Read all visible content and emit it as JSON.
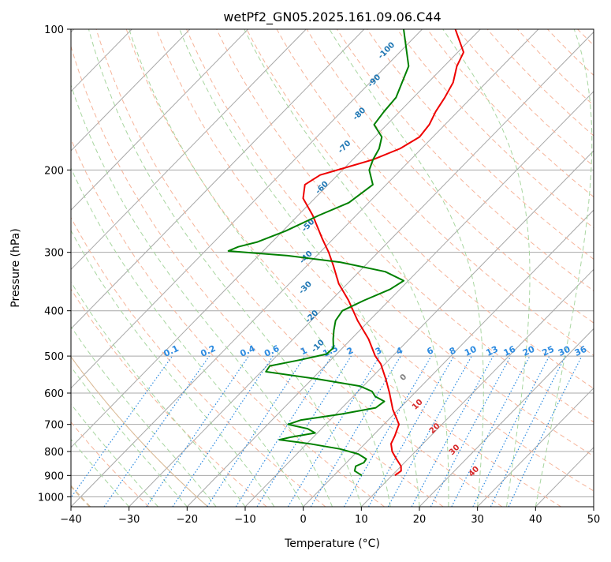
{
  "chart_data": {
    "type": "line",
    "subtype": "skew-T log-P diagram",
    "title": "wetPf2_GN05.2025.161.09.06.C44",
    "xlabel": "Temperature (°C)",
    "ylabel": "Pressure (hPa)",
    "xlim": [
      -40,
      50
    ],
    "ylim": [
      1050,
      100
    ],
    "yscale": "log",
    "x_ticks": [
      -40,
      -30,
      -20,
      -10,
      0,
      10,
      20,
      30,
      40,
      50
    ],
    "y_ticks": [
      100,
      200,
      300,
      400,
      500,
      600,
      700,
      800,
      900,
      1000
    ],
    "grid": true,
    "series": [
      {
        "role": "temperature",
        "color": "#ee0000",
        "points": [
          {
            "p": 900,
            "t": 10.5
          },
          {
            "p": 880,
            "t": 10.8
          },
          {
            "p": 860,
            "t": 10.0
          },
          {
            "p": 830,
            "t": 8.0
          },
          {
            "p": 800,
            "t": 6.0
          },
          {
            "p": 770,
            "t": 4.5
          },
          {
            "p": 740,
            "t": 3.8
          },
          {
            "p": 720,
            "t": 3.2
          },
          {
            "p": 700,
            "t": 2.6
          },
          {
            "p": 680,
            "t": 1.2
          },
          {
            "p": 650,
            "t": -1.0
          },
          {
            "p": 600,
            "t": -4.3
          },
          {
            "p": 560,
            "t": -7.3
          },
          {
            "p": 520,
            "t": -10.7
          },
          {
            "p": 500,
            "t": -13.0
          },
          {
            "p": 460,
            "t": -17.0
          },
          {
            "p": 420,
            "t": -22.0
          },
          {
            "p": 380,
            "t": -27.0
          },
          {
            "p": 350,
            "t": -31.5
          },
          {
            "p": 320,
            "t": -35.5
          },
          {
            "p": 300,
            "t": -38.5
          },
          {
            "p": 280,
            "t": -42.0
          },
          {
            "p": 250,
            "t": -47.5
          },
          {
            "p": 230,
            "t": -52.0
          },
          {
            "p": 215,
            "t": -54.0
          },
          {
            "p": 205,
            "t": -53.0
          },
          {
            "p": 198,
            "t": -50.0
          },
          {
            "p": 190,
            "t": -46.5
          },
          {
            "p": 180,
            "t": -43.7
          },
          {
            "p": 170,
            "t": -42.3
          },
          {
            "p": 160,
            "t": -42.7
          },
          {
            "p": 150,
            "t": -43.8
          },
          {
            "p": 140,
            "t": -44.6
          },
          {
            "p": 130,
            "t": -45.7
          },
          {
            "p": 120,
            "t": -47.8
          },
          {
            "p": 112,
            "t": -49.0
          },
          {
            "p": 100,
            "t": -54.3
          }
        ]
      },
      {
        "role": "dewpoint",
        "color": "#008000",
        "points": [
          {
            "p": 900,
            "t": 4.8
          },
          {
            "p": 880,
            "t": 2.8
          },
          {
            "p": 860,
            "t": 2.2
          },
          {
            "p": 845,
            "t": 3.0
          },
          {
            "p": 830,
            "t": 2.8
          },
          {
            "p": 810,
            "t": 0.6
          },
          {
            "p": 790,
            "t": -3.4
          },
          {
            "p": 770,
            "t": -9.5
          },
          {
            "p": 755,
            "t": -15.4
          },
          {
            "p": 745,
            "t": -13.8
          },
          {
            "p": 730,
            "t": -10.4
          },
          {
            "p": 715,
            "t": -12.4
          },
          {
            "p": 700,
            "t": -16.5
          },
          {
            "p": 685,
            "t": -15.0
          },
          {
            "p": 665,
            "t": -9.0
          },
          {
            "p": 645,
            "t": -4.2
          },
          {
            "p": 625,
            "t": -3.8
          },
          {
            "p": 610,
            "t": -6.2
          },
          {
            "p": 595,
            "t": -7.6
          },
          {
            "p": 580,
            "t": -10.5
          },
          {
            "p": 560,
            "t": -19.0
          },
          {
            "p": 540,
            "t": -29.2
          },
          {
            "p": 525,
            "t": -29.5
          },
          {
            "p": 510,
            "t": -25.4
          },
          {
            "p": 495,
            "t": -21.7
          },
          {
            "p": 480,
            "t": -21.6
          },
          {
            "p": 460,
            "t": -23.1
          },
          {
            "p": 440,
            "t": -24.5
          },
          {
            "p": 420,
            "t": -25.8
          },
          {
            "p": 400,
            "t": -26.3
          },
          {
            "p": 380,
            "t": -24.3
          },
          {
            "p": 360,
            "t": -21.7
          },
          {
            "p": 345,
            "t": -20.8
          },
          {
            "p": 330,
            "t": -25.5
          },
          {
            "p": 315,
            "t": -34.8
          },
          {
            "p": 305,
            "t": -45.0
          },
          {
            "p": 298,
            "t": -56.0
          },
          {
            "p": 292,
            "t": -55.0
          },
          {
            "p": 285,
            "t": -52.5
          },
          {
            "p": 270,
            "t": -49.5
          },
          {
            "p": 250,
            "t": -46.4
          },
          {
            "p": 235,
            "t": -43.4
          },
          {
            "p": 215,
            "t": -42.3
          },
          {
            "p": 200,
            "t": -45.4
          },
          {
            "p": 190,
            "t": -46.5
          },
          {
            "p": 180,
            "t": -47.3
          },
          {
            "p": 170,
            "t": -48.8
          },
          {
            "p": 160,
            "t": -52.2
          },
          {
            "p": 150,
            "t": -52.7
          },
          {
            "p": 140,
            "t": -53.0
          },
          {
            "p": 120,
            "t": -56.1
          },
          {
            "p": 100,
            "t": -63.2
          }
        ]
      }
    ],
    "dry_adiabat_labels": [
      "-100",
      "-90",
      "-80",
      "-70",
      "-60",
      "-50",
      "-40",
      "-30",
      "-20",
      "-10",
      "0",
      "10",
      "20",
      "30",
      "40"
    ],
    "mixing_ratio_labels": [
      "0.1",
      "0.2",
      "0.4",
      "0.6",
      "1",
      "1.5",
      "2",
      "3",
      "4",
      "6",
      "8",
      "10",
      "13",
      "16",
      "20",
      "25",
      "30",
      "36"
    ],
    "colors": {
      "isotherm": "#a8a8a8",
      "dry_adiabat": "#f6b49a",
      "moist_adiabat": "#a8d6a0",
      "mixing_ratio": "#2b8ae0",
      "special_adiabat": "#d8bc98",
      "label_blue": "#1f77b4",
      "label_red": "#d62728",
      "label_gray": "#808080"
    }
  }
}
